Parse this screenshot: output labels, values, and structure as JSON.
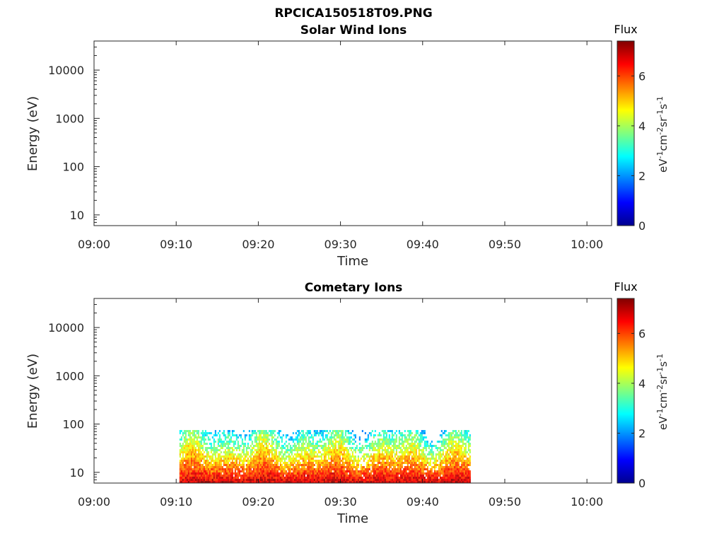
{
  "figure": {
    "title": "RPCICA150518T09.PNG"
  },
  "chart_data": [
    {
      "type": "heatmap",
      "title": "Solar Wind Ions",
      "xlabel": "Time",
      "ylabel": "Energy (eV)",
      "x_ticks": [
        "09:00",
        "09:10",
        "09:20",
        "09:30",
        "09:40",
        "09:50",
        "10:00"
      ],
      "xlim": [
        "09:00",
        "10:03"
      ],
      "y_scale": "log",
      "y_ticks": [
        "10",
        "100",
        "1000",
        "10000"
      ],
      "ylim": [
        6,
        40000
      ],
      "colorbar": {
        "label": "eV-1cm-2sr-1s-1",
        "title": "Flux",
        "ticks": [
          "0",
          "2",
          "4",
          "6"
        ],
        "range": [
          0,
          7.4
        ],
        "colormap": "jet"
      },
      "data_windows": []
    },
    {
      "type": "heatmap",
      "title": "Cometary Ions",
      "xlabel": "Time",
      "ylabel": "Energy (eV)",
      "x_ticks": [
        "09:00",
        "09:10",
        "09:20",
        "09:30",
        "09:40",
        "09:50",
        "10:00"
      ],
      "xlim": [
        "09:00",
        "10:03"
      ],
      "y_scale": "log",
      "y_ticks": [
        "10",
        "100",
        "1000",
        "10000"
      ],
      "ylim": [
        6,
        40000
      ],
      "colorbar": {
        "label": "eV-1cm-2sr-1s-1",
        "title": "Flux",
        "ticks": [
          "0",
          "2",
          "4",
          "6"
        ],
        "range": [
          0,
          7.4
        ],
        "colormap": "jet"
      },
      "data_windows": [
        {
          "start": "09:10.4",
          "end": "09:45.8",
          "energy_range": [
            6,
            80
          ],
          "flux_range": [
            2,
            7
          ]
        }
      ]
    }
  ]
}
